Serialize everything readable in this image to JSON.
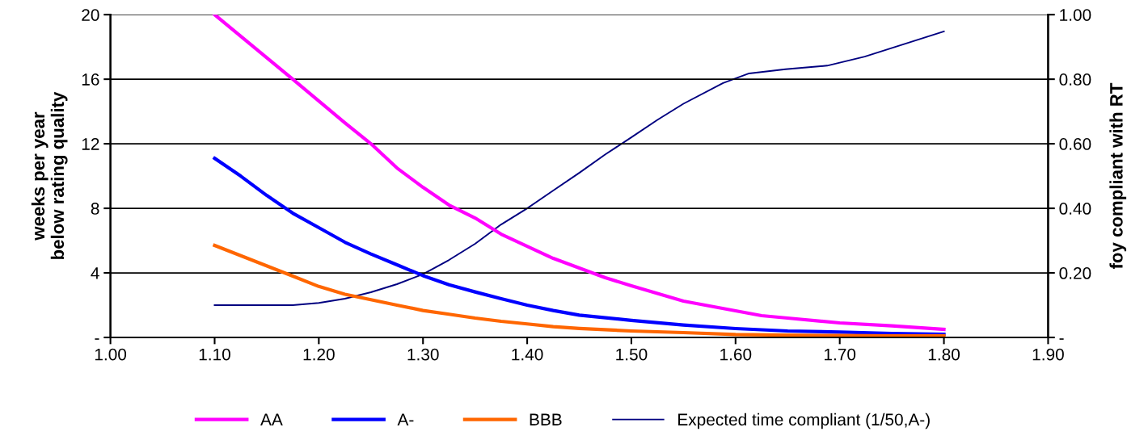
{
  "chart_data": {
    "type": "line",
    "ylabel": "weeks per year\nbelow rating quality",
    "y2label": "foy compliant with RT",
    "xlim": [
      1.0,
      1.9
    ],
    "xticks": [
      {
        "value": 1.0,
        "label": "1.00"
      },
      {
        "value": 1.1,
        "label": "1.10"
      },
      {
        "value": 1.2,
        "label": "1.20"
      },
      {
        "value": 1.3,
        "label": "1.30"
      },
      {
        "value": 1.4,
        "label": "1.40"
      },
      {
        "value": 1.5,
        "label": "1.50"
      },
      {
        "value": 1.6,
        "label": "1.60"
      },
      {
        "value": 1.7,
        "label": "1.70"
      },
      {
        "value": 1.8,
        "label": "1.80"
      },
      {
        "value": 1.9,
        "label": "1.90"
      }
    ],
    "ylim": [
      0,
      20
    ],
    "yticks": [
      {
        "value": 0,
        "label": "-"
      },
      4,
      8,
      12,
      16,
      20
    ],
    "y2lim": [
      0,
      1.0
    ],
    "y2ticks": [
      {
        "value": 0,
        "label": "-"
      },
      {
        "value": 0.2,
        "label": "0.20"
      },
      {
        "value": 0.4,
        "label": "0.40"
      },
      {
        "value": 0.6,
        "label": "0.60"
      },
      {
        "value": 0.8,
        "label": "0.80"
      },
      {
        "value": 1.0,
        "label": "1.00"
      }
    ],
    "grid": "y",
    "legend": "bottom",
    "line_style": "solid",
    "marker": "none",
    "series": [
      {
        "name": "AA",
        "color": "#ff00ff",
        "x": [
          1.1,
          1.175,
          1.2,
          1.225,
          1.25,
          1.275,
          1.3,
          1.325,
          1.35,
          1.375,
          1.4,
          1.425,
          1.45,
          1.475,
          1.5,
          1.55,
          1.575,
          1.6,
          1.625,
          1.65,
          1.7,
          1.75,
          1.8
        ],
        "values": [
          20,
          16.0,
          14.65,
          13.3,
          12.0,
          10.5,
          9.3,
          8.2,
          7.4,
          6.4,
          5.65,
          4.9,
          4.3,
          3.7,
          3.2,
          2.25,
          1.95,
          1.65,
          1.35,
          1.2,
          0.9,
          0.72,
          0.5
        ]
      },
      {
        "name": "A-",
        "color": "#0000ff",
        "x": [
          1.1,
          1.125,
          1.15,
          1.175,
          1.2,
          1.225,
          1.25,
          1.275,
          1.3,
          1.325,
          1.35,
          1.375,
          1.4,
          1.425,
          1.45,
          1.5,
          1.55,
          1.6,
          1.65,
          1.7,
          1.75,
          1.8
        ],
        "values": [
          11.1,
          10.0,
          8.8,
          7.7,
          6.8,
          5.9,
          5.17,
          4.5,
          3.83,
          3.26,
          2.82,
          2.4,
          2.0,
          1.67,
          1.38,
          1.06,
          0.77,
          0.55,
          0.4,
          0.33,
          0.25,
          0.2
        ]
      },
      {
        "name": "BBB",
        "color": "#ff6600",
        "x": [
          1.1,
          1.175,
          1.2,
          1.225,
          1.25,
          1.275,
          1.3,
          1.325,
          1.35,
          1.375,
          1.4,
          1.425,
          1.45,
          1.5,
          1.55,
          1.6,
          1.65,
          1.7,
          1.75,
          1.8
        ],
        "values": [
          5.7,
          3.8,
          3.16,
          2.68,
          2.34,
          2.0,
          1.67,
          1.44,
          1.2,
          1.0,
          0.84,
          0.67,
          0.56,
          0.4,
          0.3,
          0.18,
          0.14,
          0.12,
          0.1,
          0.1
        ]
      },
      {
        "name": "Expected time compliant (1/50,A-)",
        "color": "#000080",
        "axis": "y2",
        "x": [
          1.1,
          1.175,
          1.2,
          1.225,
          1.25,
          1.275,
          1.3,
          1.325,
          1.35,
          1.375,
          1.4,
          1.425,
          1.45,
          1.475,
          1.5,
          1.525,
          1.55,
          1.588,
          1.613,
          1.648,
          1.688,
          1.724,
          1.8
        ],
        "values": [
          0.1,
          0.1,
          0.107,
          0.12,
          0.14,
          0.165,
          0.196,
          0.24,
          0.29,
          0.35,
          0.4,
          0.455,
          0.51,
          0.567,
          0.62,
          0.674,
          0.724,
          0.788,
          0.818,
          0.831,
          0.842,
          0.87,
          0.948
        ]
      }
    ]
  }
}
